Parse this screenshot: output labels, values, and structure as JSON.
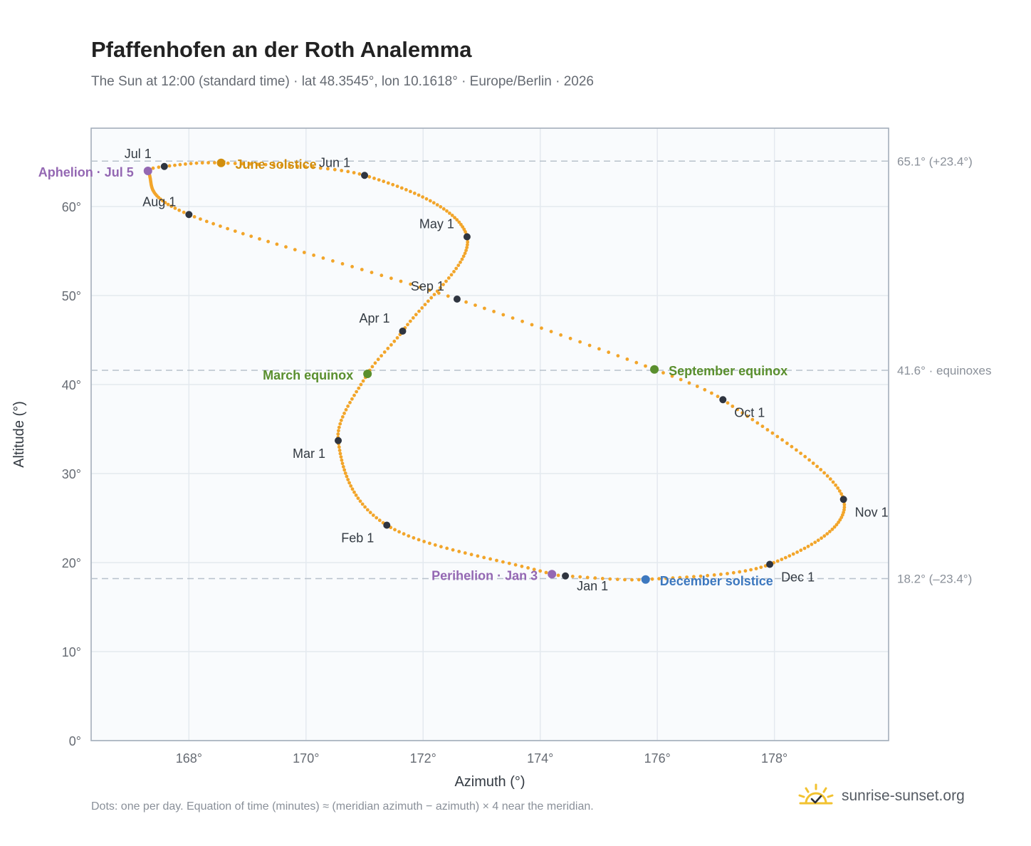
{
  "header": {
    "title": "Pfaffenhofen an der Roth Analemma",
    "subtitle": "The Sun at 12:00 (standard time) · lat 48.3545°, lon 10.1618° · Europe/Berlin · 2026"
  },
  "footer": {
    "note": "Dots: one per day. Equation of time (minutes) ≈ (meridian azimuth − azimuth) × 4 near the meridian.",
    "brand": "sunrise-sunset.org"
  },
  "colors": {
    "curve": "#f2a52a",
    "month_marker": "#2f3540",
    "equinox": "#5a8f2e",
    "june_solstice": "#d18e0d",
    "december_solstice": "#3d78bf",
    "apsis": "#9468b3",
    "reference_line": "#b8c2cc",
    "plot_background": "#f9fbfd",
    "grid": "#e4e9ef",
    "axis_frame": "#a4aebb"
  },
  "chart_data": {
    "type": "scatter",
    "xlabel": "Azimuth (°)",
    "ylabel": "Altitude (°)",
    "xlim": [
      166.33,
      179.95
    ],
    "ylim": [
      0,
      68.8
    ],
    "x_ticks": [
      168,
      170,
      172,
      174,
      176,
      178
    ],
    "x_tick_labels": [
      "168°",
      "170°",
      "172°",
      "174°",
      "176°",
      "178°"
    ],
    "y_ticks": [
      0,
      10,
      20,
      30,
      40,
      50,
      60
    ],
    "y_tick_labels": [
      "0°",
      "10°",
      "20°",
      "30°",
      "40°",
      "50°",
      "60°"
    ],
    "grid": true,
    "reference_lines": [
      {
        "y": 65.1,
        "label": "65.1° (+23.4°)"
      },
      {
        "y": 41.6,
        "label": "41.6° · equinoxes"
      },
      {
        "y": 18.2,
        "label": "18.2° (–23.4°)"
      }
    ],
    "analemma_key_points": [
      {
        "date": "Jan 1",
        "az": 174.43,
        "alt": 18.5
      },
      {
        "date": "Jan 3",
        "az": 174.2,
        "alt": 18.7
      },
      {
        "date": "Feb 1",
        "az": 171.38,
        "alt": 24.2
      },
      {
        "date": "Mar 1",
        "az": 170.55,
        "alt": 33.7
      },
      {
        "date": "Mar 20",
        "az": 171.05,
        "alt": 41.2
      },
      {
        "date": "Apr 1",
        "az": 171.65,
        "alt": 46.0
      },
      {
        "date": "May 1",
        "az": 172.75,
        "alt": 56.6
      },
      {
        "date": "Jun 1",
        "az": 171.0,
        "alt": 63.5
      },
      {
        "date": "Jun 21",
        "az": 168.55,
        "alt": 64.9
      },
      {
        "date": "Jul 1",
        "az": 167.58,
        "alt": 64.5
      },
      {
        "date": "Jul 5",
        "az": 167.3,
        "alt": 64.0
      },
      {
        "date": "Aug 1",
        "az": 168.0,
        "alt": 59.1
      },
      {
        "date": "Sep 1",
        "az": 172.58,
        "alt": 49.6
      },
      {
        "date": "Sep 22",
        "az": 175.95,
        "alt": 41.7
      },
      {
        "date": "Oct 1",
        "az": 177.12,
        "alt": 38.3
      },
      {
        "date": "Nov 1",
        "az": 179.18,
        "alt": 27.1
      },
      {
        "date": "Dec 1",
        "az": 177.92,
        "alt": 19.8
      },
      {
        "date": "Dec 21",
        "az": 175.8,
        "alt": 18.1
      }
    ],
    "month_markers": [
      {
        "label": "Jan 1",
        "az": 174.43,
        "alt": 18.5
      },
      {
        "label": "Feb 1",
        "az": 171.38,
        "alt": 24.2
      },
      {
        "label": "Mar 1",
        "az": 170.55,
        "alt": 33.7
      },
      {
        "label": "Apr 1",
        "az": 171.65,
        "alt": 46.0
      },
      {
        "label": "May 1",
        "az": 172.75,
        "alt": 56.6
      },
      {
        "label": "Jun 1",
        "az": 171.0,
        "alt": 63.5
      },
      {
        "label": "Jul 1",
        "az": 167.58,
        "alt": 64.5
      },
      {
        "label": "Aug 1",
        "az": 168.0,
        "alt": 59.1
      },
      {
        "label": "Sep 1",
        "az": 172.58,
        "alt": 49.6
      },
      {
        "label": "Oct 1",
        "az": 177.12,
        "alt": 38.3
      },
      {
        "label": "Nov 1",
        "az": 179.18,
        "alt": 27.1
      },
      {
        "label": "Dec 1",
        "az": 177.92,
        "alt": 19.8
      }
    ],
    "events": [
      {
        "label": "June solstice",
        "az": 168.55,
        "alt": 64.9,
        "kind": "june_solstice"
      },
      {
        "label": "March equinox",
        "az": 171.05,
        "alt": 41.2,
        "kind": "equinox"
      },
      {
        "label": "September equinox",
        "az": 175.95,
        "alt": 41.7,
        "kind": "equinox"
      },
      {
        "label": "December solstice",
        "az": 175.8,
        "alt": 18.1,
        "kind": "december_solstice"
      },
      {
        "label": "Aphelion · Jul 5",
        "az": 167.3,
        "alt": 64.0,
        "kind": "apsis"
      },
      {
        "label": "Perihelion · Jan 3",
        "az": 174.2,
        "alt": 18.7,
        "kind": "apsis"
      }
    ]
  }
}
